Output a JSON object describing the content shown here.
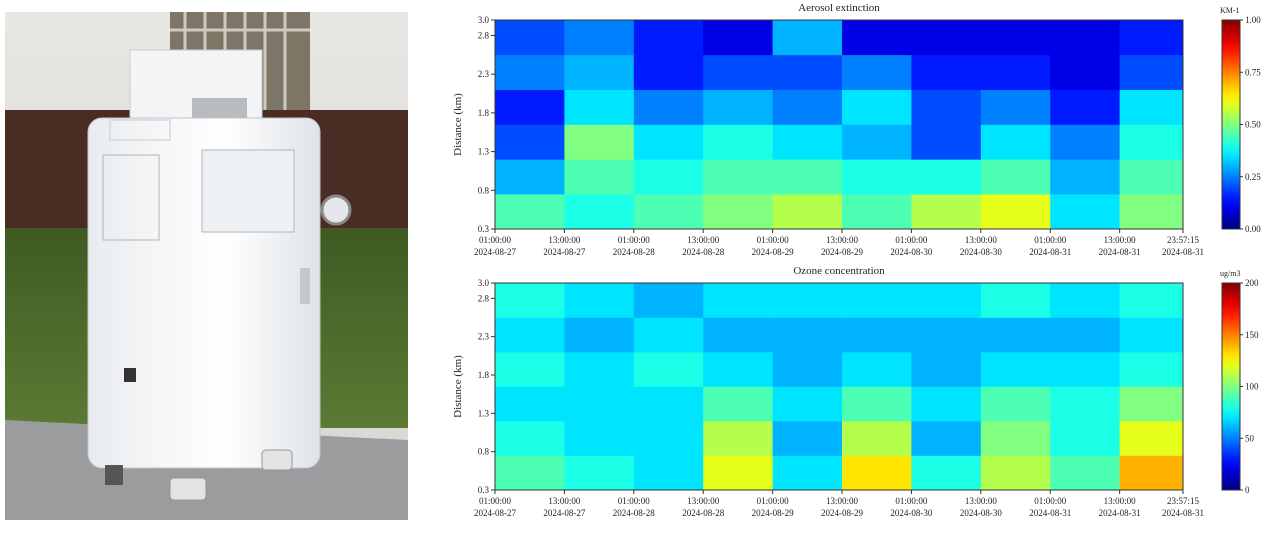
{
  "chart_data": [
    {
      "type": "heatmap",
      "title": "Aerosol extinction",
      "ylabel": "Distance (km)",
      "colorbar_label": "KM-1",
      "colormap": "jet",
      "xbins": [
        "2024-08-27T01:00:00",
        "2024-08-27T13:00:00",
        "2024-08-28T01:00:00",
        "2024-08-28T13:00:00",
        "2024-08-29T01:00:00",
        "2024-08-29T13:00:00",
        "2024-08-30T01:00:00",
        "2024-08-30T13:00:00",
        "2024-08-31T01:00:00",
        "2024-08-31T13:00:00",
        "2024-08-31T23:57:15"
      ],
      "ybins": [
        0.3,
        0.75,
        1.2,
        1.65,
        2.1,
        2.55,
        3.0
      ],
      "values": [
        [
          0.45,
          0.4,
          0.45,
          0.5,
          0.55,
          0.45,
          0.55,
          0.6,
          0.35,
          0.5
        ],
        [
          0.3,
          0.45,
          0.4,
          0.45,
          0.45,
          0.4,
          0.4,
          0.45,
          0.3,
          0.45
        ],
        [
          0.2,
          0.5,
          0.35,
          0.4,
          0.35,
          0.3,
          0.2,
          0.35,
          0.25,
          0.4
        ],
        [
          0.15,
          0.35,
          0.25,
          0.3,
          0.25,
          0.35,
          0.2,
          0.25,
          0.15,
          0.35
        ],
        [
          0.25,
          0.3,
          0.15,
          0.2,
          0.2,
          0.25,
          0.15,
          0.15,
          0.1,
          0.2
        ],
        [
          0.2,
          0.25,
          0.15,
          0.1,
          0.3,
          0.1,
          0.1,
          0.1,
          0.1,
          0.15
        ]
      ],
      "xlim": [
        "2024-08-27T01:00:00",
        "2024-08-31T23:57:15"
      ],
      "xticks": [
        {
          "value": "2024-08-27T01:00:00",
          "label": [
            "01:00:00",
            "2024-08-27"
          ]
        },
        {
          "value": "2024-08-27T13:00:00",
          "label": [
            "13:00:00",
            "2024-08-27"
          ]
        },
        {
          "value": "2024-08-28T01:00:00",
          "label": [
            "01:00:00",
            "2024-08-28"
          ]
        },
        {
          "value": "2024-08-28T13:00:00",
          "label": [
            "13:00:00",
            "2024-08-28"
          ]
        },
        {
          "value": "2024-08-29T01:00:00",
          "label": [
            "01:00:00",
            "2024-08-29"
          ]
        },
        {
          "value": "2024-08-29T13:00:00",
          "label": [
            "13:00:00",
            "2024-08-29"
          ]
        },
        {
          "value": "2024-08-30T01:00:00",
          "label": [
            "01:00:00",
            "2024-08-30"
          ]
        },
        {
          "value": "2024-08-30T13:00:00",
          "label": [
            "13:00:00",
            "2024-08-30"
          ]
        },
        {
          "value": "2024-08-31T01:00:00",
          "label": [
            "01:00:00",
            "2024-08-31"
          ]
        },
        {
          "value": "2024-08-31T13:00:00",
          "label": [
            "13:00:00",
            "2024-08-31"
          ]
        },
        {
          "value": "2024-08-31T23:57:15",
          "label": [
            "23:57:15",
            "2024-08-31"
          ]
        }
      ],
      "ylim": [
        0.3,
        3.0
      ],
      "yticks": [
        0.3,
        0.8,
        1.3,
        1.8,
        2.3,
        2.8,
        {
          "value": 3.0,
          "label": "3.0"
        }
      ],
      "clim": [
        0,
        1
      ],
      "cticks": [
        {
          "value": 0,
          "label": "0.00"
        },
        {
          "value": 0.25,
          "label": "0.25"
        },
        {
          "value": 0.5,
          "label": "0.50"
        },
        {
          "value": 0.75,
          "label": "0.75"
        },
        {
          "value": 1,
          "label": "1.00"
        }
      ]
    },
    {
      "type": "heatmap",
      "title": "Ozone concentration",
      "ylabel": "Distance (km)",
      "colorbar_label": "ug/m3",
      "colormap": "jet",
      "xbins": [
        "2024-08-27T01:00:00",
        "2024-08-27T13:00:00",
        "2024-08-28T01:00:00",
        "2024-08-28T13:00:00",
        "2024-08-29T01:00:00",
        "2024-08-29T13:00:00",
        "2024-08-30T01:00:00",
        "2024-08-30T13:00:00",
        "2024-08-31T01:00:00",
        "2024-08-31T13:00:00",
        "2024-08-31T23:57:15"
      ],
      "ybins": [
        0.3,
        0.75,
        1.2,
        1.65,
        2.1,
        2.55,
        3.0
      ],
      "values": [
        [
          90,
          80,
          70,
          120,
          70,
          130,
          80,
          110,
          90,
          140
        ],
        [
          80,
          70,
          70,
          110,
          60,
          110,
          60,
          100,
          80,
          120
        ],
        [
          70,
          70,
          70,
          90,
          70,
          90,
          70,
          90,
          80,
          100
        ],
        [
          80,
          70,
          80,
          70,
          60,
          70,
          60,
          70,
          70,
          80
        ],
        [
          70,
          60,
          70,
          60,
          60,
          60,
          60,
          60,
          60,
          70
        ],
        [
          80,
          70,
          60,
          70,
          70,
          70,
          70,
          80,
          70,
          80
        ]
      ],
      "xlim": [
        "2024-08-27T01:00:00",
        "2024-08-31T23:57:15"
      ],
      "xticks": [
        {
          "value": "2024-08-27T01:00:00",
          "label": [
            "01:00:00",
            "2024-08-27"
          ]
        },
        {
          "value": "2024-08-27T13:00:00",
          "label": [
            "13:00:00",
            "2024-08-27"
          ]
        },
        {
          "value": "2024-08-28T01:00:00",
          "label": [
            "01:00:00",
            "2024-08-28"
          ]
        },
        {
          "value": "2024-08-28T13:00:00",
          "label": [
            "13:00:00",
            "2024-08-28"
          ]
        },
        {
          "value": "2024-08-29T01:00:00",
          "label": [
            "01:00:00",
            "2024-08-29"
          ]
        },
        {
          "value": "2024-08-29T13:00:00",
          "label": [
            "13:00:00",
            "2024-08-29"
          ]
        },
        {
          "value": "2024-08-30T01:00:00",
          "label": [
            "01:00:00",
            "2024-08-30"
          ]
        },
        {
          "value": "2024-08-30T13:00:00",
          "label": [
            "13:00:00",
            "2024-08-30"
          ]
        },
        {
          "value": "2024-08-31T01:00:00",
          "label": [
            "01:00:00",
            "2024-08-31"
          ]
        },
        {
          "value": "2024-08-31T13:00:00",
          "label": [
            "13:00:00",
            "2024-08-31"
          ]
        },
        {
          "value": "2024-08-31T23:57:15",
          "label": [
            "23:57:15",
            "2024-08-31"
          ]
        }
      ],
      "ylim": [
        0.3,
        3.0
      ],
      "yticks": [
        0.3,
        0.8,
        1.3,
        1.8,
        2.3,
        2.8,
        {
          "value": 3.0,
          "label": "3.0"
        }
      ],
      "clim": [
        0,
        200
      ],
      "cticks": [
        0,
        50,
        100,
        150,
        200
      ]
    }
  ]
}
